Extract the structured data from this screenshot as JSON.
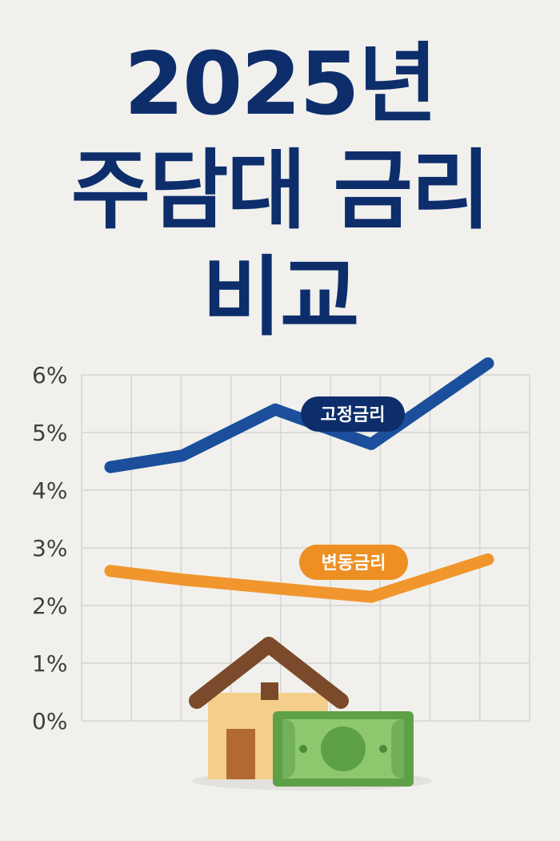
{
  "title_lines": [
    "2025년",
    "주담대 금리",
    "비교"
  ],
  "colors": {
    "title": "#0d2e6b",
    "fixed": "#1b4f9c",
    "fixed_label_bg": "#0d2e6b",
    "variable": "#f0962d",
    "variable_label_bg": "#ee8f24",
    "grid": "#d4d4d4",
    "background": "#f1f0ed"
  },
  "chart_data": {
    "type": "line",
    "y_ticks": [
      "0%",
      "1%",
      "2%",
      "3%",
      "4%",
      "5%",
      "6%"
    ],
    "ylim": [
      0,
      6
    ],
    "x": [
      0,
      1,
      2,
      3,
      4
    ],
    "grid": true,
    "series": [
      {
        "name": "고정금리",
        "values": [
          4.4,
          4.6,
          5.4,
          4.8,
          6.2
        ],
        "color": "#1b4f9c"
      },
      {
        "name": "변동금리",
        "values": [
          2.6,
          2.45,
          2.3,
          2.15,
          2.8
        ],
        "color": "#f0962d"
      }
    ]
  },
  "icons": [
    "house-icon",
    "money-bill-icon"
  ]
}
